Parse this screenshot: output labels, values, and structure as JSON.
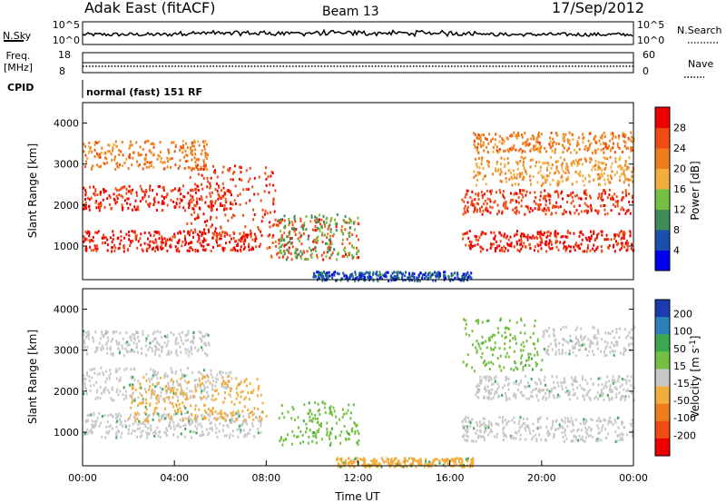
{
  "header": {
    "station": "Adak East (fitACF)",
    "beam": "Beam 13",
    "date": "17/Sep/2012"
  },
  "top_panels": {
    "nsky": {
      "left_label": "N.Sky",
      "right_label": "N.Search",
      "left_ticks": [
        "10^5",
        "10^0"
      ],
      "right_ticks": [
        "10^5",
        "10^0"
      ]
    },
    "freq": {
      "left_label_1": "Freq.",
      "left_label_2": "[MHz]",
      "right_label": "Nave",
      "left_ticks": [
        "18",
        "8"
      ],
      "right_ticks": [
        "60",
        "0"
      ]
    },
    "cpid": {
      "label": "CPID",
      "mode": "normal (fast) 151 RF"
    }
  },
  "chart_data": [
    {
      "type": "heatmap",
      "parameter": "Power",
      "ylabel": "Slant Range [km]",
      "colorbar_label": "Power [dB]",
      "y_ticks": [
        1000,
        2000,
        3000,
        4000
      ],
      "ylim": [
        180,
        4500
      ],
      "colorbar_ticks": [
        4,
        8,
        12,
        16,
        20,
        24,
        28
      ],
      "colorbar_range": [
        0,
        32
      ],
      "colorbar_colors": [
        "#0000ee",
        "#1a4fb0",
        "#3d8c5a",
        "#74c043",
        "#f2ad3c",
        "#f07d1a",
        "#ef4c14",
        "#ee0000"
      ],
      "scatter_bands": [
        {
          "t_start": 0.0,
          "t_end": 7.8,
          "r_start": 900,
          "r_end": 1400,
          "level": 29
        },
        {
          "t_start": 0.0,
          "t_end": 6.5,
          "r_start": 1900,
          "r_end": 2500,
          "level": 28
        },
        {
          "t_start": 0.0,
          "t_end": 5.5,
          "r_start": 2900,
          "r_end": 3600,
          "level": 22
        },
        {
          "t_start": 4.5,
          "t_end": 8.5,
          "r_start": 1200,
          "r_end": 3000,
          "level": 27
        },
        {
          "t_start": 8.0,
          "t_end": 12.0,
          "r_start": 700,
          "r_end": 1700,
          "level": 26
        },
        {
          "t_start": 8.5,
          "t_end": 12.0,
          "r_start": 700,
          "r_end": 1800,
          "level": 12
        },
        {
          "t_start": 10.0,
          "t_end": 17.0,
          "r_start": 180,
          "r_end": 400,
          "level": 6
        },
        {
          "t_start": 16.5,
          "t_end": 24.0,
          "r_start": 900,
          "r_end": 1400,
          "level": 29
        },
        {
          "t_start": 16.5,
          "t_end": 24.0,
          "r_start": 1800,
          "r_end": 2400,
          "level": 27
        },
        {
          "t_start": 17.0,
          "t_end": 24.0,
          "r_start": 2500,
          "r_end": 3200,
          "level": 20
        },
        {
          "t_start": 17.0,
          "t_end": 24.0,
          "r_start": 3300,
          "r_end": 3800,
          "level": 22
        }
      ]
    },
    {
      "type": "heatmap",
      "parameter": "Velocity",
      "ylabel": "Slant Range [km]",
      "xlabel": "Time UT",
      "colorbar_label": "Velocity [m s^-1]",
      "x_ticks": [
        "00:00",
        "04:00",
        "08:00",
        "12:00",
        "16:00",
        "20:00",
        "00:00"
      ],
      "xlim_hours": [
        0,
        24
      ],
      "y_ticks": [
        1000,
        2000,
        3000,
        4000
      ],
      "ylim": [
        180,
        4500
      ],
      "colorbar_ticks": [
        "200",
        "100",
        "50",
        "15",
        "-15",
        "-50",
        "-100",
        "-200"
      ],
      "colorbar_colors": [
        "#1a3cb0",
        "#2c7fb8",
        "#3aa84f",
        "#74c043",
        "#c8c8c8",
        "#f2ad3c",
        "#f07d1a",
        "#ef4c14",
        "#ee0000"
      ],
      "scatter_bands": [
        {
          "t_start": 0.0,
          "t_end": 7.8,
          "r_start": 900,
          "r_end": 1500,
          "level": "gray"
        },
        {
          "t_start": 0.0,
          "t_end": 6.5,
          "r_start": 1800,
          "r_end": 2600,
          "level": "gray"
        },
        {
          "t_start": 0.0,
          "t_end": 5.5,
          "r_start": 2900,
          "r_end": 3500,
          "level": "gray"
        },
        {
          "t_start": 2.0,
          "t_end": 8.0,
          "r_start": 1300,
          "r_end": 2400,
          "level": "orange"
        },
        {
          "t_start": 8.5,
          "t_end": 12.0,
          "r_start": 700,
          "r_end": 1800,
          "level": "green"
        },
        {
          "t_start": 11.0,
          "t_end": 17.0,
          "r_start": 180,
          "r_end": 400,
          "level": "orange"
        },
        {
          "t_start": 16.5,
          "t_end": 24.0,
          "r_start": 800,
          "r_end": 1400,
          "level": "gray"
        },
        {
          "t_start": 17.0,
          "t_end": 24.0,
          "r_start": 1800,
          "r_end": 2400,
          "level": "gray"
        },
        {
          "t_start": 16.5,
          "t_end": 20.0,
          "r_start": 2500,
          "r_end": 3800,
          "level": "green"
        },
        {
          "t_start": 20.0,
          "t_end": 24.0,
          "r_start": 2900,
          "r_end": 3600,
          "level": "gray"
        }
      ]
    }
  ],
  "colors": {
    "frame": "#000000",
    "background": "#ffffff"
  }
}
